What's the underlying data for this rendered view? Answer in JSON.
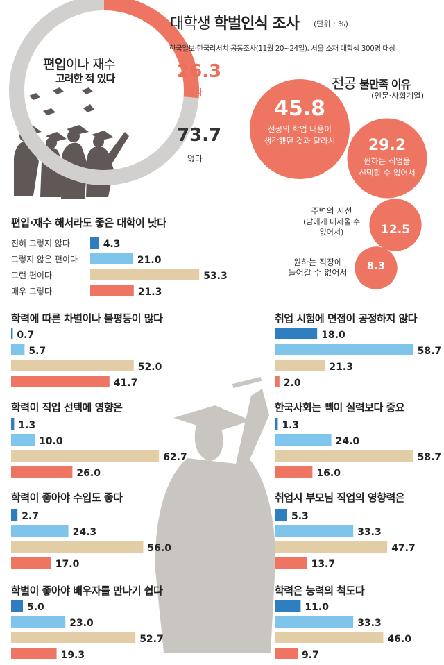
{
  "header": {
    "title_light": "대학생",
    "title_bold": "학벌인식 조사",
    "unit": "(단위 : %)",
    "source": "한국일보·한국리서치 공동조사(11월 20~24일), 서울 소재 대학생 300명 대상"
  },
  "colors": {
    "dark_blue": "#2f7fc0",
    "light_blue": "#7fc4ea",
    "beige": "#e3cda6",
    "coral": "#ed7561",
    "gray": "#d1d0cf",
    "silhouette": "#c9c6c2"
  },
  "chart_data": [
    {
      "type": "pie",
      "title_line1_bold": "편입",
      "title_line1_rest": "이나 재수",
      "title_line2": "고려한 적 있다",
      "labels": [
        "있다",
        "없다"
      ],
      "values": [
        26.3,
        73.7
      ],
      "value_labels": [
        "26.3",
        "73.7"
      ]
    },
    {
      "type": "bubble",
      "title_bold": "전공",
      "title_rest": "불만족 이유",
      "subtitle": "(인문·사회계열)",
      "items": [
        {
          "value": 45.8,
          "value_label": "45.8",
          "text": [
            "전공의 학업 내용이",
            "생각했던 것과 달라서"
          ]
        },
        {
          "value": 29.2,
          "value_label": "29.2",
          "text": [
            "원하는 직업을",
            "선택할 수 없어서"
          ]
        },
        {
          "value": 12.5,
          "value_label": "12.5",
          "text": [
            "주변의 시선",
            "(남에게 내세울 수",
            "없어서)"
          ]
        },
        {
          "value": 8.3,
          "value_label": "8.3",
          "text": [
            "원하는 직장에",
            "들어갈 수 없어서"
          ]
        }
      ]
    },
    {
      "type": "bar",
      "title": "편입·재수 해서라도 좋은 대학이 낫다",
      "categories": [
        "전혀 그렇지 않다",
        "그렇지 않은 편이다",
        "그런 편이다",
        "매우 그렇다"
      ],
      "values": [
        4.3,
        21.0,
        53.3,
        21.3
      ],
      "value_labels": [
        "4.3",
        "21.0",
        "53.3",
        "21.3"
      ]
    },
    {
      "type": "bar",
      "title": "학력에 따른 차별이나 불평등이 많다",
      "values": [
        0.7,
        5.7,
        52.0,
        41.7
      ],
      "value_labels": [
        "0.7",
        "5.7",
        "52.0",
        "41.7"
      ]
    },
    {
      "type": "bar",
      "title": "취업 시험에 면접이 공정하지 않다",
      "values": [
        18.0,
        58.7,
        21.3,
        2.0
      ],
      "value_labels": [
        "18.0",
        "58.7",
        "21.3",
        "2.0"
      ]
    },
    {
      "type": "bar",
      "title": "학력이 직업 선택에 영향은",
      "values": [
        1.3,
        10.0,
        62.7,
        26.0
      ],
      "value_labels": [
        "1.3",
        "10.0",
        "62.7",
        "26.0"
      ]
    },
    {
      "type": "bar",
      "title": "한국사회는 빽이 실력보다 중요",
      "values": [
        1.3,
        24.0,
        58.7,
        16.0
      ],
      "value_labels": [
        "1.3",
        "24.0",
        "58.7",
        "16.0"
      ]
    },
    {
      "type": "bar",
      "title": "학력이 좋아야 수입도 좋다",
      "values": [
        2.7,
        24.3,
        56.0,
        17.0
      ],
      "value_labels": [
        "2.7",
        "24.3",
        "56.0",
        "17.0"
      ]
    },
    {
      "type": "bar",
      "title": "취업시 부모님 직업의 영향력은",
      "values": [
        5.3,
        33.3,
        47.7,
        13.7
      ],
      "value_labels": [
        "5.3",
        "33.3",
        "47.7",
        "13.7"
      ]
    },
    {
      "type": "bar",
      "title": "학벌이 좋아야 배우자를 만나기 쉽다",
      "values": [
        5.0,
        23.0,
        52.7,
        19.3
      ],
      "value_labels": [
        "5.0",
        "23.0",
        "52.7",
        "19.3"
      ]
    },
    {
      "type": "bar",
      "title": "학력은 능력의 척도다",
      "values": [
        11.0,
        33.3,
        46.0,
        9.7
      ],
      "value_labels": [
        "11.0",
        "33.3",
        "46.0",
        "9.7"
      ]
    }
  ]
}
